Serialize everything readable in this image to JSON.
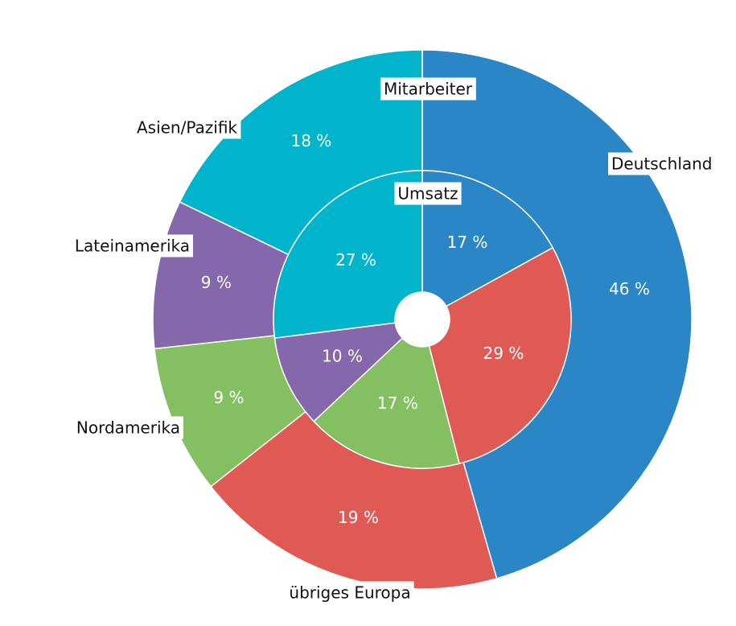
{
  "chart_data": {
    "type": "nested-pie",
    "categories": [
      "Deutschland",
      "übriges Europa",
      "Nordamerika",
      "Lateinamerika",
      "Asien/Pazifik"
    ],
    "colors": [
      "#2a86c4",
      "#e05a55",
      "#84c062",
      "#8468ab",
      "#00b4cc"
    ],
    "series": [
      {
        "name": "Mitarbeiter",
        "values": [
          46,
          19,
          9,
          9,
          18
        ],
        "value_labels": [
          "46 %",
          "19 %",
          "9 %",
          "9 %",
          "18 %"
        ]
      },
      {
        "name": "Umsatz",
        "values": [
          17,
          29,
          17,
          10,
          27
        ],
        "value_labels": [
          "17 %",
          "29 %",
          "17 %",
          "10 %",
          "27 %"
        ]
      }
    ]
  }
}
